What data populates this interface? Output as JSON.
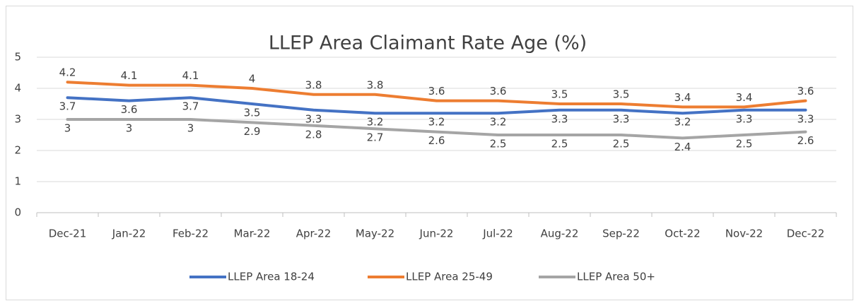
{
  "chart_data": {
    "type": "line",
    "title": "LLEP Area Claimant Rate Age (%)",
    "categories": [
      "Dec-21",
      "Jan-22",
      "Feb-22",
      "Mar-22",
      "Apr-22",
      "May-22",
      "Jun-22",
      "Jul-22",
      "Aug-22",
      "Sep-22",
      "Oct-22",
      "Nov-22",
      "Dec-22"
    ],
    "series": [
      {
        "name": "LLEP Area 18-24",
        "color": "#4472c4",
        "values": [
          3.7,
          3.6,
          3.7,
          3.5,
          3.3,
          3.2,
          3.2,
          3.2,
          3.3,
          3.3,
          3.2,
          3.3,
          3.3
        ]
      },
      {
        "name": "LLEP Area 25-49",
        "color": "#ed7d31",
        "values": [
          4.2,
          4.1,
          4.1,
          4,
          3.8,
          3.8,
          3.6,
          3.6,
          3.5,
          3.5,
          3.4,
          3.4,
          3.6
        ]
      },
      {
        "name": "LLEP Area 50+",
        "color": "#a5a5a5",
        "values": [
          3,
          3,
          3,
          2.9,
          2.8,
          2.7,
          2.6,
          2.5,
          2.5,
          2.5,
          2.4,
          2.5,
          2.6
        ]
      }
    ],
    "ylim": [
      0,
      5
    ],
    "yticks": [
      0,
      1,
      2,
      3,
      4,
      5
    ],
    "grid": true,
    "legend": "bottom"
  }
}
